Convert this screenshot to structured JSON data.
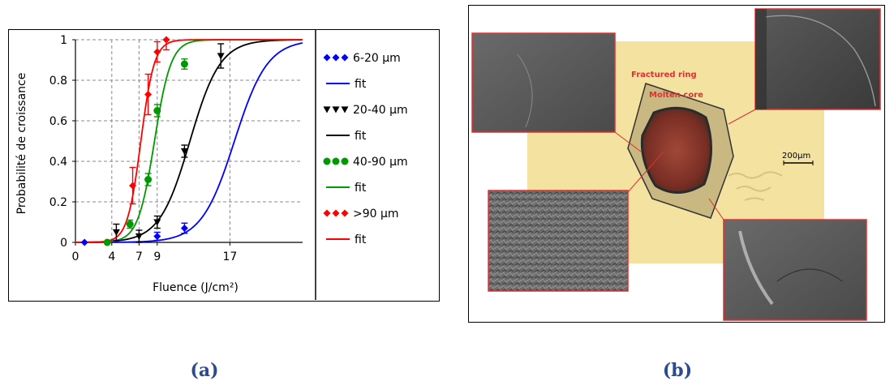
{
  "figure": {
    "captions": {
      "a": "(a)",
      "b": "(b)"
    }
  },
  "chart_data": {
    "type": "scatter",
    "xlabel": "Fluence (J/cm²)",
    "ylabel": "Probabilité de croissance",
    "xlim": [
      0,
      25
    ],
    "ylim": [
      0,
      1
    ],
    "x_ticks": [
      0,
      4,
      7,
      9,
      17
    ],
    "y_ticks": [
      0,
      0.2,
      0.4,
      0.6,
      0.8,
      1
    ],
    "x_tick_labels": [
      "0",
      "4",
      "7",
      "9",
      "17"
    ],
    "y_tick_labels": [
      "0",
      "0.2",
      "0.4",
      "0.6",
      "0.8",
      "1"
    ],
    "grid": true,
    "legend_position": "right",
    "series": [
      {
        "name": "6-20 µm",
        "fit_label": "fit",
        "color": "#0000ff",
        "marker": "diamond",
        "x": [
          1,
          9,
          12
        ],
        "y": [
          0,
          0.03,
          0.07
        ],
        "err": [
          0,
          0.02,
          0.025
        ],
        "fit": {
          "x50": 17.5,
          "k": 0.55
        }
      },
      {
        "name": "20-40 µm",
        "fit_label": "fit",
        "color": "#000000",
        "marker": "triangle-down",
        "x": [
          4.5,
          7,
          9,
          12,
          16
        ],
        "y": [
          0.05,
          0.03,
          0.1,
          0.45,
          0.92
        ],
        "err": [
          0.04,
          0.03,
          0.03,
          0.03,
          0.06
        ],
        "fit": {
          "x50": 12.6,
          "k": 0.6
        }
      },
      {
        "name": "40-90 µm",
        "fit_label": "fit",
        "color": "#009900",
        "marker": "circle",
        "x": [
          3.5,
          6,
          8,
          9,
          12
        ],
        "y": [
          0,
          0.09,
          0.31,
          0.65,
          0.88
        ],
        "err": [
          0,
          0.02,
          0.03,
          0.03,
          0.025
        ],
        "fit": {
          "x50": 8.7,
          "k": 1.1
        }
      },
      {
        "name": ">90 µm",
        "fit_label": "fit",
        "color": "#ff0000",
        "marker": "diamond",
        "x": [
          6.3,
          8,
          9,
          10
        ],
        "y": [
          0.28,
          0.73,
          0.94,
          1.0
        ],
        "err": [
          0.09,
          0.1,
          0.05,
          0.05
        ],
        "fit": {
          "x50": 7.2,
          "k": 1.35
        }
      }
    ]
  },
  "micrograph": {
    "labels": {
      "fractured_ring": "Fractured ring",
      "molten_core": "Molten core",
      "scale_bar": "200µm"
    },
    "colors": {
      "background_yellow": "#f3e2a0",
      "core_red": "#8b3a30",
      "callout_red": "#e03030",
      "sem_gray": "#555555"
    }
  }
}
